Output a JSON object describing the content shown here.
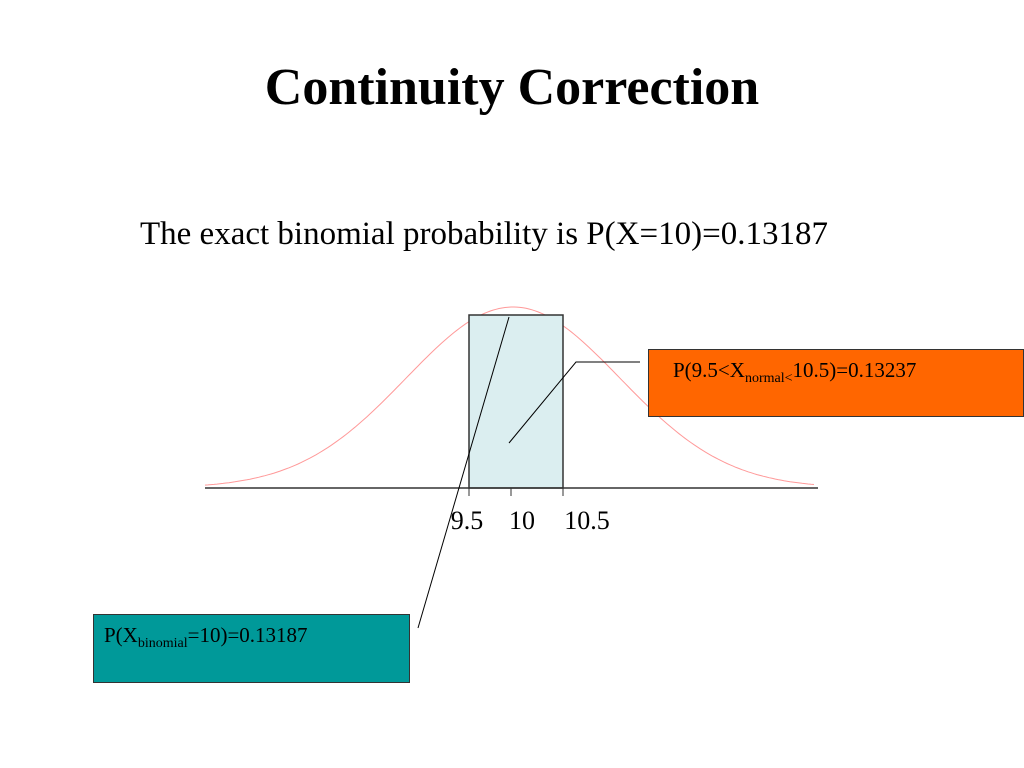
{
  "title": "Continuity Correction",
  "subtitle": "The exact binomial probability is P(X=10)=0.13187",
  "axis": {
    "labels": [
      "9.5",
      "10",
      "10.5"
    ]
  },
  "callouts": [
    {
      "parts": [
        "P(9.5<X",
        "normal<",
        "10.5)=0.13237"
      ]
    },
    {
      "parts": [
        "P(X",
        "binomial",
        "=10)=0.13187"
      ]
    }
  ]
}
